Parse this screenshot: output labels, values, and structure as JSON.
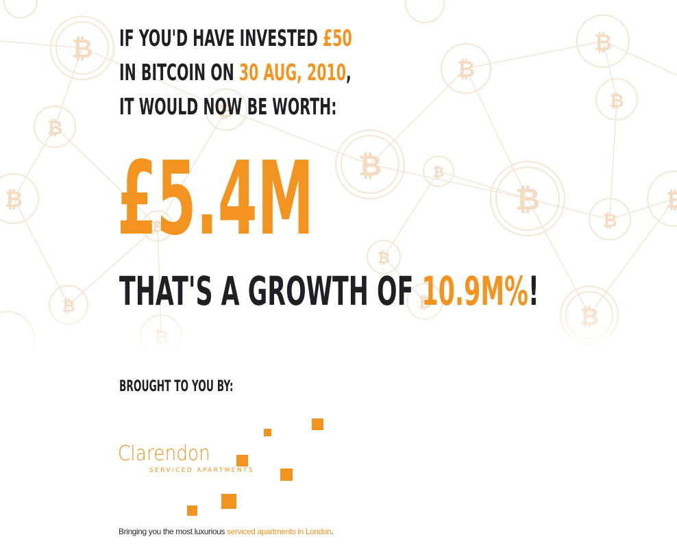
{
  "headline": {
    "line1_prefix": "IF YOU'D HAVE INVESTED ",
    "line1_amount": "£50",
    "line2_prefix": "IN BITCOIN ON ",
    "line2_date": "30 AUG, 2010",
    "line2_suffix": ",",
    "line3": "IT WOULD NOW BE WORTH:"
  },
  "value": "£5.4M",
  "growth": {
    "prefix": "THAT'S A GROWTH OF ",
    "percent": "10.9M%",
    "suffix": "!"
  },
  "brought_by": "BROUGHT TO YOU BY:",
  "logo": {
    "name": "Clarendon",
    "subtitle": "SERVICED APARTMENTS"
  },
  "tagline": {
    "prefix": "Bringing you the most luxurious ",
    "highlight": "serviced apartments in London",
    "suffix": "."
  },
  "colors": {
    "accent": "#f39420",
    "text": "#1f1f24",
    "background_pattern": "#f6e6d3"
  },
  "background_icons": "bitcoin-coin-network"
}
